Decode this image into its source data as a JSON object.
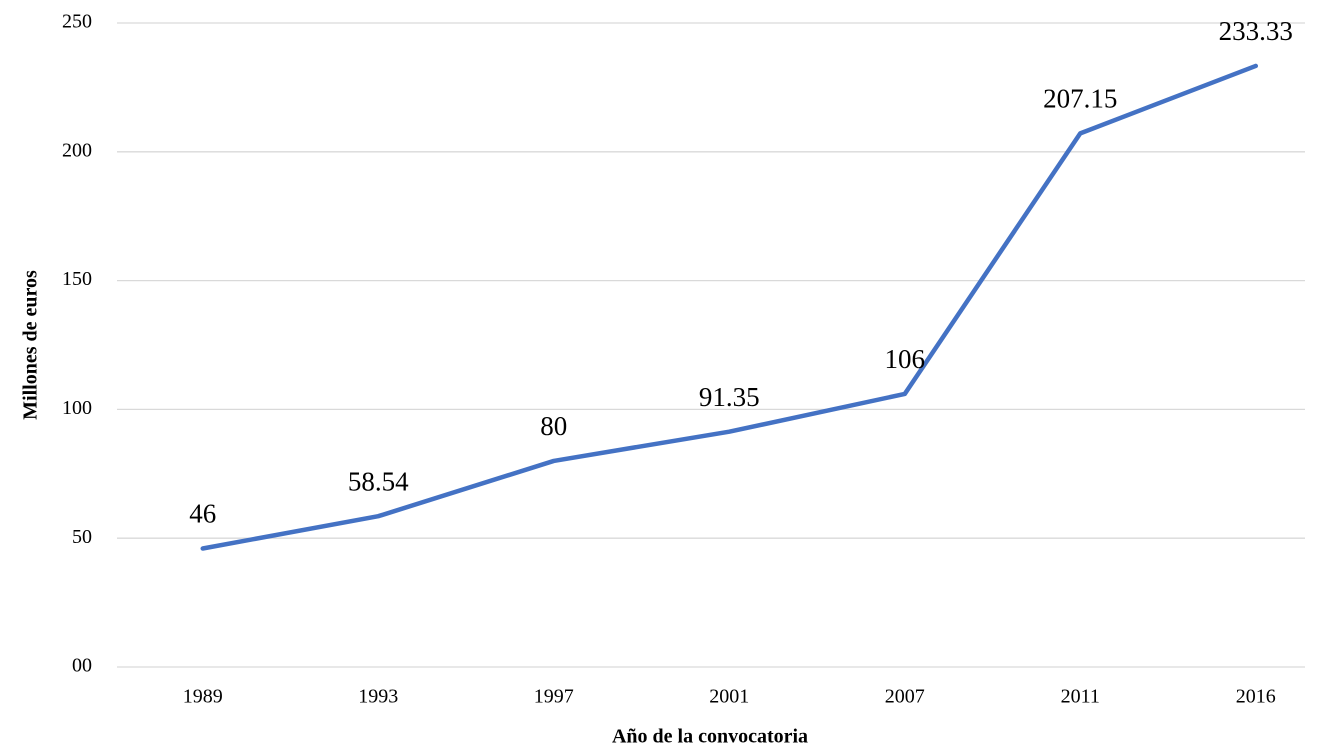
{
  "chart_data": {
    "type": "line",
    "categories": [
      "1989",
      "1993",
      "1997",
      "2001",
      "2007",
      "2011",
      "2016"
    ],
    "series": [
      {
        "name": "Millones de euros",
        "color": "#4472c4",
        "values": [
          46,
          58.54,
          80,
          91.35,
          106,
          207.15,
          233.33
        ]
      }
    ],
    "x_label": "Año de la convocatoria",
    "y_label": "Millones de euros",
    "ylim": [
      0,
      250
    ],
    "yticks": [
      {
        "value": 0,
        "label": "00"
      },
      50,
      100,
      150,
      200,
      250
    ],
    "grid": true
  }
}
